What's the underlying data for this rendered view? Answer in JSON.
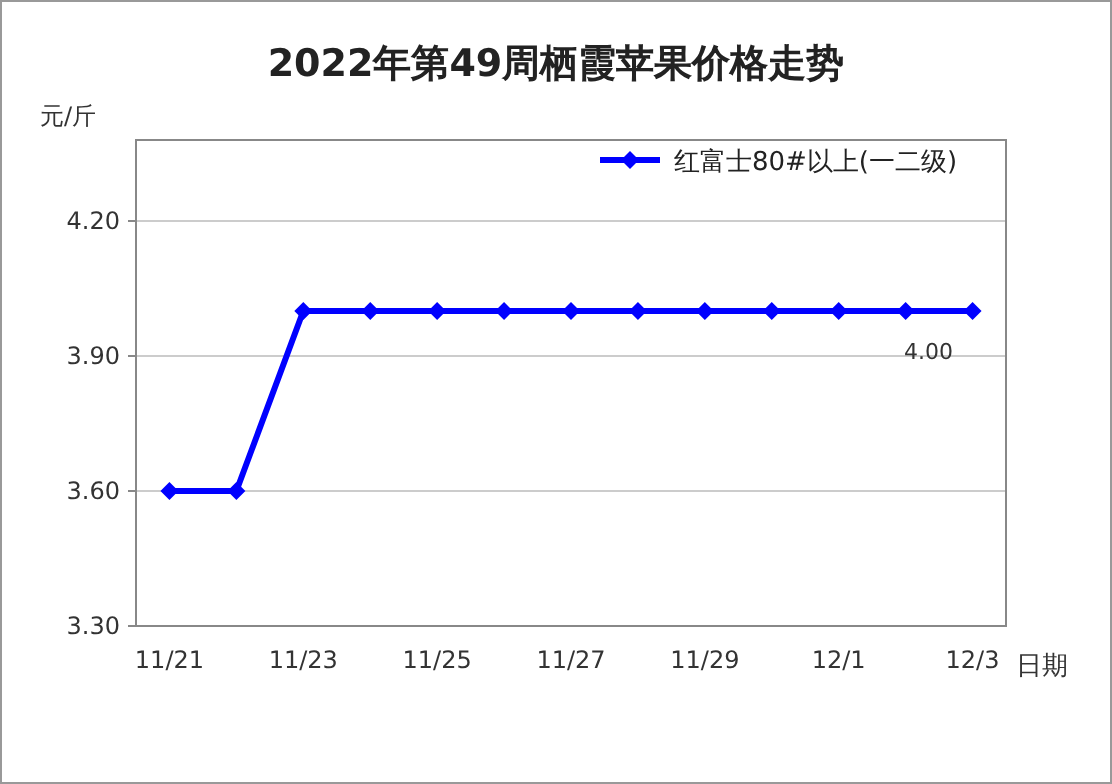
{
  "chart_data": {
    "type": "line",
    "title": "2022年第49周栖霞苹果价格走势",
    "ylabel": "元/斤",
    "xlabel": "日期",
    "categories": [
      "11/21",
      null,
      "11/23",
      null,
      "11/25",
      null,
      "11/27",
      null,
      "11/29",
      null,
      "12/1",
      null,
      "12/3"
    ],
    "series": [
      {
        "name": "红富士80#以上(一二级)",
        "color": "#0000ff",
        "values": [
          3.6,
          3.6,
          4.0,
          4.0,
          4.0,
          4.0,
          4.0,
          4.0,
          4.0,
          4.0,
          4.0,
          4.0,
          4.0
        ],
        "value_labels": [
          null,
          null,
          null,
          null,
          null,
          null,
          null,
          null,
          null,
          null,
          null,
          null,
          "4.00"
        ]
      }
    ],
    "ylim": [
      3.3,
      4.38
    ],
    "yticks": [
      {
        "value": 3.3,
        "label": "3.30"
      },
      {
        "value": 3.6,
        "label": "3.60"
      },
      {
        "value": 3.9,
        "label": "3.90"
      },
      {
        "value": 4.2,
        "label": "4.20"
      }
    ],
    "grid": "y",
    "legend": "top right",
    "marker": "diamond",
    "line_style": "solid"
  }
}
